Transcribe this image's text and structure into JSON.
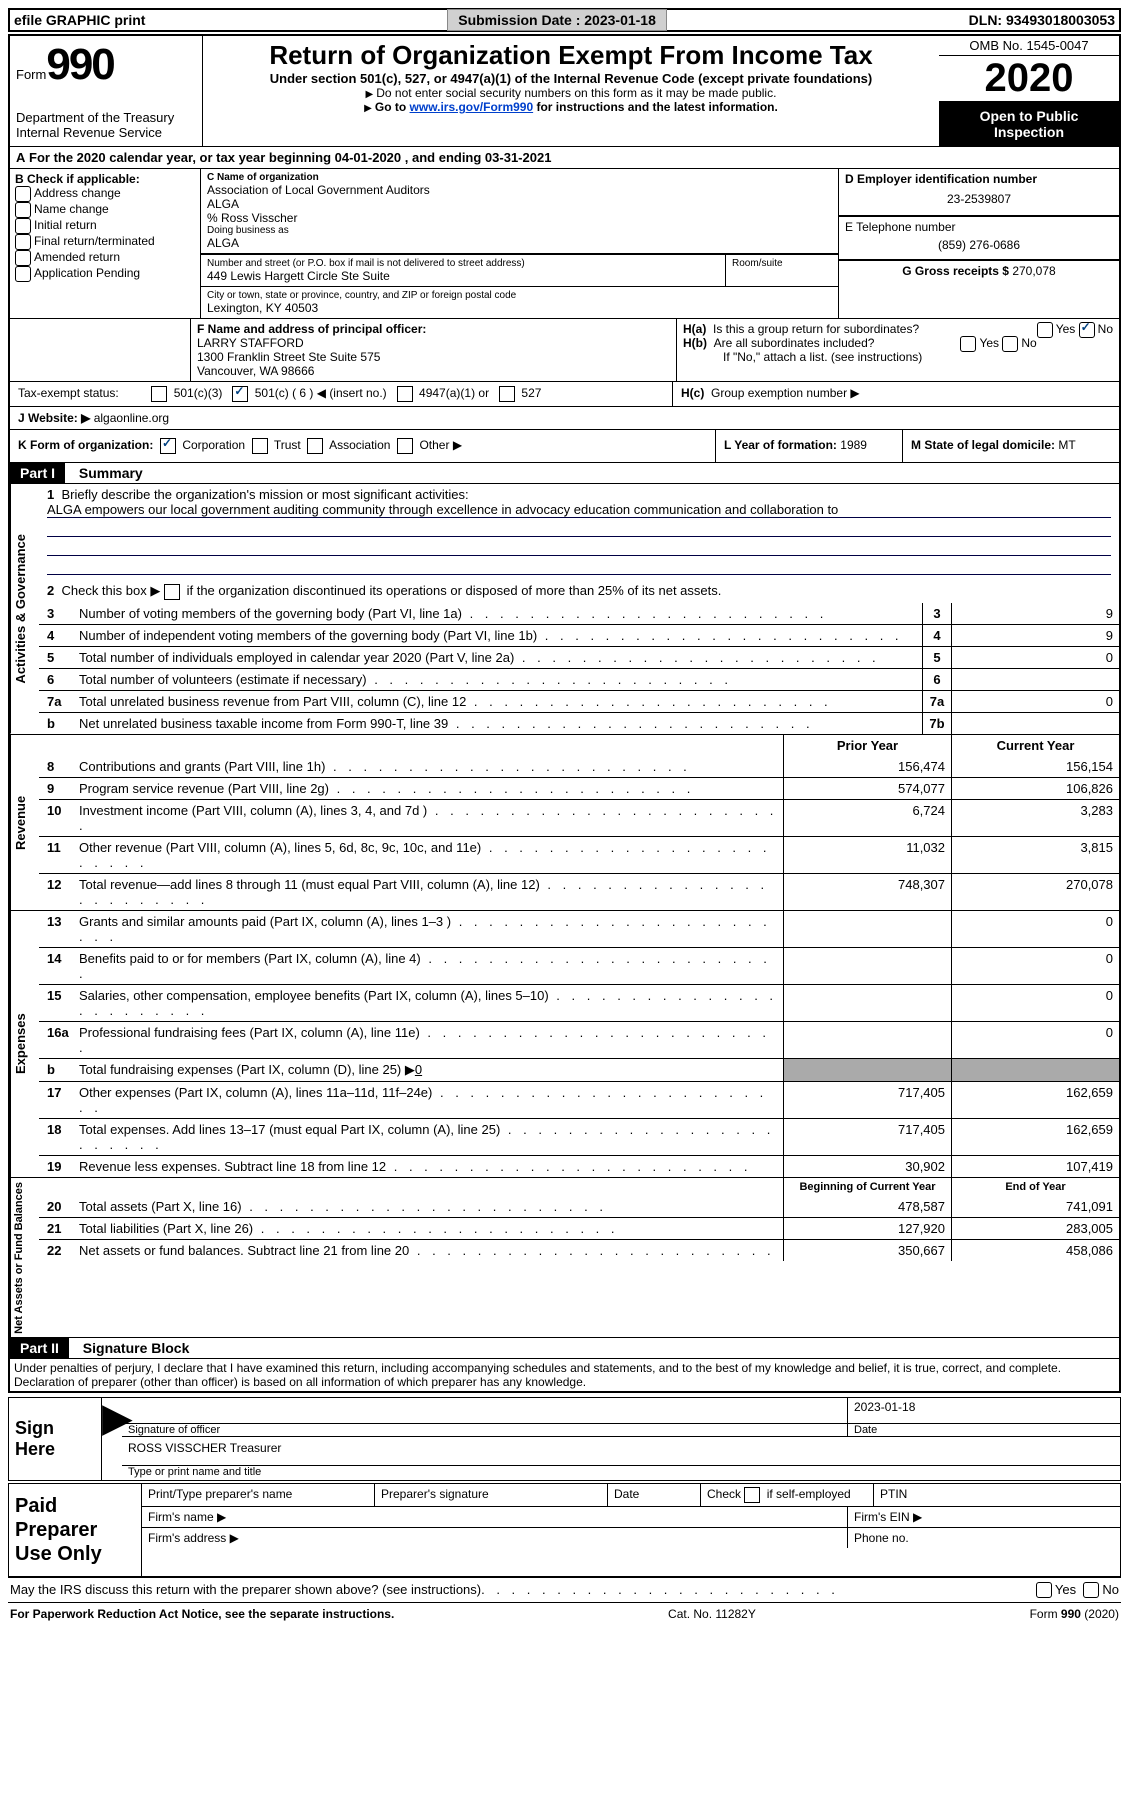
{
  "header": {
    "efile": "efile GRAPHIC print",
    "submission_label": "Submission Date :",
    "submission_date": "2023-01-18",
    "dln_label": "DLN:",
    "dln": "93493018003053"
  },
  "top": {
    "form": "Form",
    "num": "990",
    "dept": "Department of the Treasury",
    "irs": "Internal Revenue Service",
    "title": "Return of Organization Exempt From Income Tax",
    "under": "Under section 501(c), 527, or 4947(a)(1) of the Internal Revenue Code (except private foundations)",
    "note1": "Do not enter social security numbers on this form as it may be made public.",
    "note2_pre": "Go to ",
    "note2_link": "www.irs.gov/Form990",
    "note2_post": " for instructions and the latest information.",
    "omb": "OMB No. 1545-0047",
    "year": "2020",
    "inspect": "Open to Public Inspection"
  },
  "a": {
    "text": "For the 2020 calendar year, or tax year beginning 04-01-2020",
    "end": ", and ending 03-31-2021"
  },
  "b": {
    "label": "B Check if applicable:",
    "items": [
      "Address change",
      "Name change",
      "Initial return",
      "Final return/terminated",
      "Amended return",
      "Application Pending"
    ]
  },
  "c": {
    "name_label": "C Name of organization",
    "name1": "Association of Local Government Auditors",
    "name2": "ALGA",
    "care": "% Ross Visscher",
    "dba_label": "Doing business as",
    "dba": "ALGA",
    "street_label": "Number and street (or P.O. box if mail is not delivered to street address)",
    "room_label": "Room/suite",
    "street": "449 Lewis Hargett Circle Ste Suite",
    "city_label": "City or town, state or province, country, and ZIP or foreign postal code",
    "city": "Lexington, KY  40503"
  },
  "d": {
    "label": "D Employer identification number",
    "value": "23-2539807"
  },
  "e": {
    "label": "E Telephone number",
    "value": "(859) 276-0686"
  },
  "g": {
    "label": "G Gross receipts $",
    "value": "270,078"
  },
  "f": {
    "label": "F  Name and address of principal officer:",
    "name": "LARRY STAFFORD",
    "addr1": "1300 Franklin Street Ste Suite 575",
    "addr2": "Vancouver, WA  98666"
  },
  "h": {
    "a_label": "H(a)",
    "a_text": "Is this a group return for subordinates?",
    "b_label": "H(b)",
    "b_text": "Are all subordinates included?",
    "b_note": "If \"No,\" attach a list. (see instructions)",
    "c_label": "H(c)",
    "c_text": "Group exemption number ▶",
    "yes": "Yes",
    "no": "No"
  },
  "i": {
    "label": "Tax-exempt status:",
    "opts": [
      "501(c)(3)",
      "501(c) ( 6 ) ◀ (insert no.)",
      "4947(a)(1) or",
      "527"
    ]
  },
  "j": {
    "label": "J Website: ▶",
    "value": "algaonline.org"
  },
  "k": {
    "label": "K Form of organization:",
    "opts": [
      "Corporation",
      "Trust",
      "Association",
      "Other ▶"
    ]
  },
  "l": {
    "label": "L Year of formation:",
    "value": "1989"
  },
  "m": {
    "label": "M State of legal domicile:",
    "value": "MT"
  },
  "part1": {
    "label": "Part I",
    "title": "Summary"
  },
  "gov": {
    "vlabel": "Activities & Governance",
    "l1_label": "1",
    "l1_text": "Briefly describe the organization's mission or most significant activities:",
    "l1_mission": "ALGA empowers our local government auditing community through excellence in advocacy education communication and collaboration to",
    "l2_label": "2",
    "l2_text": "Check this box ▶",
    "l2_after": "if the organization discontinued its operations or disposed of more than 25% of its net assets.",
    "lines": [
      {
        "n": "3",
        "t": "Number of voting members of the governing body (Part VI, line 1a)",
        "b": "3",
        "v": "9"
      },
      {
        "n": "4",
        "t": "Number of independent voting members of the governing body (Part VI, line 1b)",
        "b": "4",
        "v": "9"
      },
      {
        "n": "5",
        "t": "Total number of individuals employed in calendar year 2020 (Part V, line 2a)",
        "b": "5",
        "v": "0"
      },
      {
        "n": "6",
        "t": "Total number of volunteers (estimate if necessary)",
        "b": "6",
        "v": ""
      },
      {
        "n": "7a",
        "t": "Total unrelated business revenue from Part VIII, column (C), line 12",
        "b": "7a",
        "v": "0"
      },
      {
        "n": "b",
        "t": "Net unrelated business taxable income from Form 990-T, line 39",
        "b": "7b",
        "v": ""
      }
    ]
  },
  "revenue": {
    "vlabel": "Revenue",
    "hdr_prior": "Prior Year",
    "hdr_current": "Current Year",
    "lines": [
      {
        "n": "8",
        "t": "Contributions and grants (Part VIII, line 1h)",
        "p": "156,474",
        "c": "156,154"
      },
      {
        "n": "9",
        "t": "Program service revenue (Part VIII, line 2g)",
        "p": "574,077",
        "c": "106,826"
      },
      {
        "n": "10",
        "t": "Investment income (Part VIII, column (A), lines 3, 4, and 7d )",
        "p": "6,724",
        "c": "3,283"
      },
      {
        "n": "11",
        "t": "Other revenue (Part VIII, column (A), lines 5, 6d, 8c, 9c, 10c, and 11e)",
        "p": "11,032",
        "c": "3,815"
      },
      {
        "n": "12",
        "t": "Total revenue—add lines 8 through 11 (must equal Part VIII, column (A), line 12)",
        "p": "748,307",
        "c": "270,078"
      }
    ]
  },
  "expenses": {
    "vlabel": "Expenses",
    "lines": [
      {
        "n": "13",
        "t": "Grants and similar amounts paid (Part IX, column (A), lines 1–3 )",
        "p": "",
        "c": "0"
      },
      {
        "n": "14",
        "t": "Benefits paid to or for members (Part IX, column (A), line 4)",
        "p": "",
        "c": "0"
      },
      {
        "n": "15",
        "t": "Salaries, other compensation, employee benefits (Part IX, column (A), lines 5–10)",
        "p": "",
        "c": "0"
      },
      {
        "n": "16a",
        "t": "Professional fundraising fees (Part IX, column (A), line 11e)",
        "p": "",
        "c": "0"
      },
      {
        "n": "b",
        "t": "Total fundraising expenses (Part IX, column (D), line 25) ▶",
        "p": "gray",
        "c": "gray",
        "fund": "0"
      },
      {
        "n": "17",
        "t": "Other expenses (Part IX, column (A), lines 11a–11d, 11f–24e)",
        "p": "717,405",
        "c": "162,659"
      },
      {
        "n": "18",
        "t": "Total expenses. Add lines 13–17 (must equal Part IX, column (A), line 25)",
        "p": "717,405",
        "c": "162,659"
      },
      {
        "n": "19",
        "t": "Revenue less expenses. Subtract line 18 from line 12",
        "p": "30,902",
        "c": "107,419"
      }
    ]
  },
  "netassets": {
    "vlabel": "Net Assets or Fund Balances",
    "hdr_beg": "Beginning of Current Year",
    "hdr_end": "End of Year",
    "lines": [
      {
        "n": "20",
        "t": "Total assets (Part X, line 16)",
        "p": "478,587",
        "c": "741,091"
      },
      {
        "n": "21",
        "t": "Total liabilities (Part X, line 26)",
        "p": "127,920",
        "c": "283,005"
      },
      {
        "n": "22",
        "t": "Net assets or fund balances. Subtract line 21 from line 20",
        "p": "350,667",
        "c": "458,086"
      }
    ]
  },
  "part2": {
    "label": "Part II",
    "title": "Signature Block",
    "perjury": "Under penalties of perjury, I declare that I have examined this return, including accompanying schedules and statements, and to the best of my knowledge and belief, it is true, correct, and complete. Declaration of preparer (other than officer) is based on all information of which preparer has any knowledge."
  },
  "sign": {
    "left": "Sign Here",
    "sig_label": "Signature of officer",
    "date_label": "Date",
    "date": "2023-01-18",
    "name": "ROSS VISSCHER Treasurer",
    "name_label": "Type or print name and title"
  },
  "prep": {
    "left": "Paid Preparer Use Only",
    "r1": [
      "Print/Type preparer's name",
      "Preparer's signature",
      "Date",
      "Check        if self-employed",
      "PTIN"
    ],
    "r2_label": "Firm's name   ▶",
    "r2_ein": "Firm's EIN ▶",
    "r3_label": "Firm's address ▶",
    "r3_phone": "Phone no."
  },
  "footer": {
    "discuss": "May the IRS discuss this return with the preparer shown above? (see instructions)",
    "paperwork": "For Paperwork Reduction Act Notice, see the separate instructions.",
    "cat": "Cat. No. 11282Y",
    "form": "Form 990 (2020)",
    "yes": "Yes",
    "no": "No"
  }
}
